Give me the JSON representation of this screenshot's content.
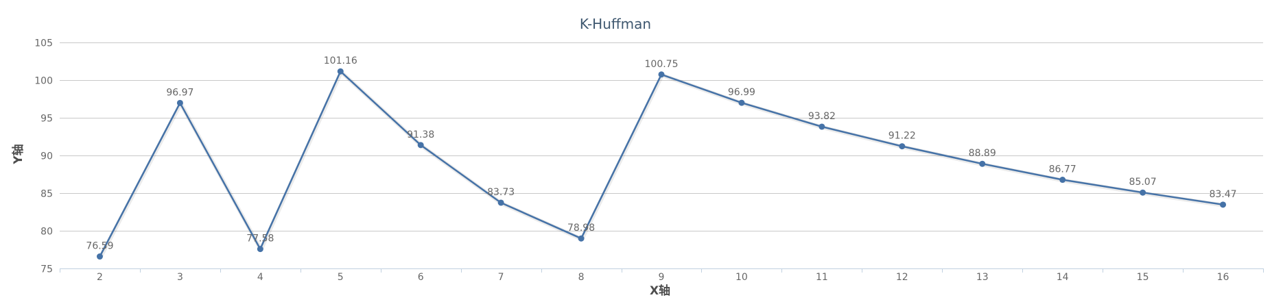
{
  "chart_data": {
    "type": "line",
    "title": "K-Huffman",
    "xlabel": "X轴",
    "ylabel": "Y轴",
    "x": [
      2,
      3,
      4,
      5,
      6,
      7,
      8,
      9,
      10,
      11,
      12,
      13,
      14,
      15,
      16
    ],
    "series": [
      {
        "values": [
          76.59,
          96.97,
          77.58,
          101.16,
          91.38,
          83.73,
          78.98,
          100.75,
          96.99,
          93.82,
          91.22,
          88.89,
          86.77,
          85.07,
          83.47
        ],
        "labels": [
          "76.59",
          "96.97",
          "77.58",
          "101.16",
          "91.38",
          "83.73",
          "78.98",
          "100.75",
          "96.99",
          "93.82",
          "91.22",
          "88.89",
          "86.77",
          "85.07",
          "83.47"
        ],
        "color": "#4572a7"
      }
    ],
    "ylim": [
      75,
      105
    ],
    "yticks": [
      75,
      80,
      85,
      90,
      95,
      100,
      105
    ],
    "grid": true,
    "legend": "none"
  }
}
